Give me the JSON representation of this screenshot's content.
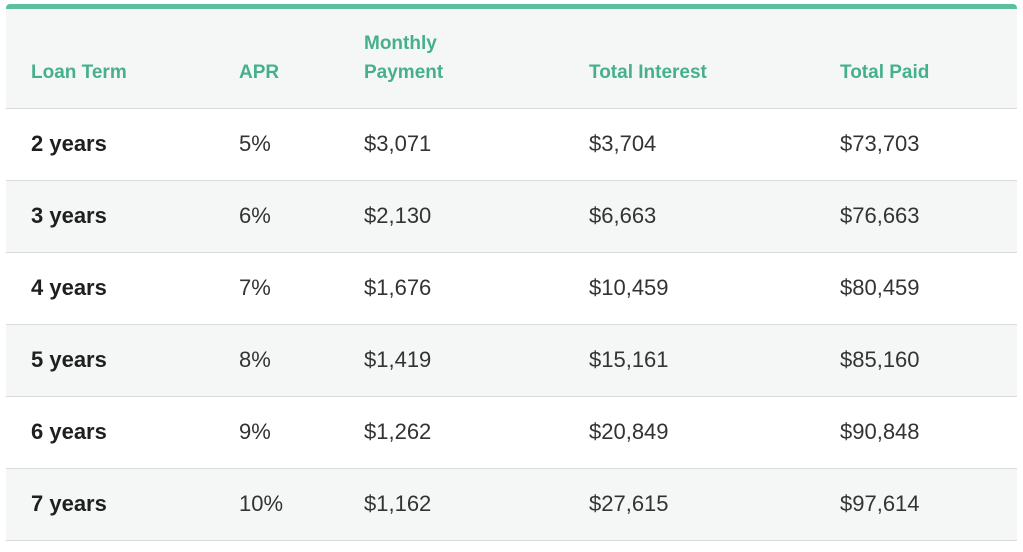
{
  "table": {
    "headers": {
      "term": "Loan Term",
      "apr": "APR",
      "monthly_line1": "Monthly",
      "monthly_line2": "Payment",
      "interest": "Total Interest",
      "paid": "Total Paid"
    },
    "rows": [
      {
        "term": "2 years",
        "apr": "5%",
        "monthly": "$3,071",
        "interest": "$3,704",
        "paid": "$73,703"
      },
      {
        "term": "3 years",
        "apr": "6%",
        "monthly": "$2,130",
        "interest": "$6,663",
        "paid": "$76,663"
      },
      {
        "term": "4 years",
        "apr": "7%",
        "monthly": "$1,676",
        "interest": "$10,459",
        "paid": "$80,459"
      },
      {
        "term": "5 years",
        "apr": "8%",
        "monthly": "$1,419",
        "interest": "$15,161",
        "paid": "$85,160"
      },
      {
        "term": "6 years",
        "apr": "9%",
        "monthly": "$1,262",
        "interest": "$20,849",
        "paid": "$90,848"
      },
      {
        "term": "7 years",
        "apr": "10%",
        "monthly": "$1,162",
        "interest": "$27,615",
        "paid": "$97,614"
      }
    ]
  },
  "colors": {
    "accent": "#5cbf9f",
    "header_text": "#46b08e",
    "stripe": "#f5f7f6",
    "border": "#d9d9d9"
  }
}
